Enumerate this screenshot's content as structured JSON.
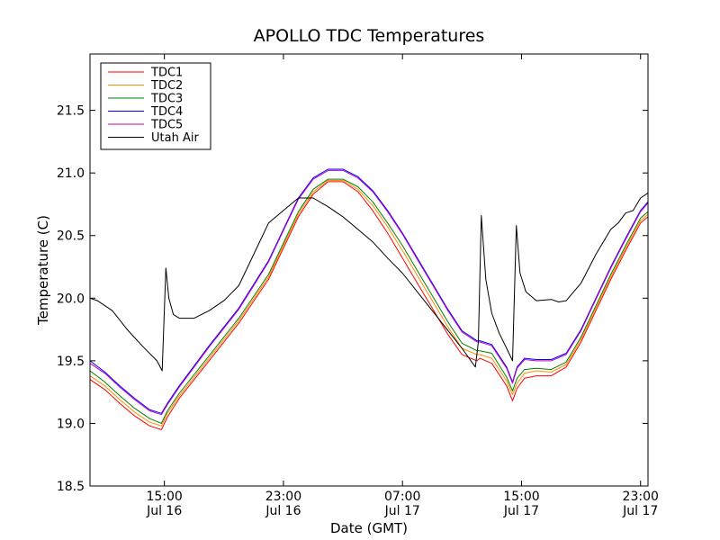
{
  "chart_data": {
    "type": "line",
    "title": "APOLLO TDC Temperatures",
    "xlabel": "Date (GMT)",
    "ylabel": "Temperature (C)",
    "x_unit": "hours since Jul 16 00:00 GMT",
    "xlim": [
      10.0,
      47.5
    ],
    "ylim": [
      18.5,
      21.95
    ],
    "grid": false,
    "legend_position": "top-left",
    "x_ticks": [
      {
        "value": 15,
        "line1": "15:00",
        "line2": "Jul 16"
      },
      {
        "value": 23,
        "line1": "23:00",
        "line2": "Jul 16"
      },
      {
        "value": 31,
        "line1": "07:00",
        "line2": "Jul 17"
      },
      {
        "value": 39,
        "line1": "15:00",
        "line2": "Jul 17"
      },
      {
        "value": 47,
        "line1": "23:00",
        "line2": "Jul 17"
      }
    ],
    "y_ticks": [
      {
        "value": 18.5,
        "label": "18.5"
      },
      {
        "value": 19.0,
        "label": "19.0"
      },
      {
        "value": 19.5,
        "label": "19.5"
      },
      {
        "value": 20.0,
        "label": "20.0"
      },
      {
        "value": 20.5,
        "label": "20.5"
      },
      {
        "value": 21.0,
        "label": "21.0"
      },
      {
        "value": 21.5,
        "label": "21.5"
      }
    ],
    "series": [
      {
        "name": "TDC1",
        "color": "#ff0000",
        "x": [
          10,
          11,
          12,
          13,
          14,
          14.8,
          15.2,
          16,
          18,
          20,
          22,
          23,
          24,
          25,
          26,
          27,
          28,
          29,
          30,
          31,
          32,
          33,
          34,
          35,
          36,
          36.2,
          37,
          38,
          38.4,
          38.7,
          39.2,
          40,
          41,
          42,
          43,
          44,
          45,
          46,
          47,
          47.5
        ],
        "y": [
          19.35,
          19.27,
          19.16,
          19.06,
          18.98,
          18.95,
          19.05,
          19.2,
          19.5,
          19.8,
          20.15,
          20.4,
          20.65,
          20.83,
          20.93,
          20.93,
          20.85,
          20.7,
          20.52,
          20.32,
          20.12,
          19.92,
          19.72,
          19.55,
          19.5,
          19.52,
          19.48,
          19.3,
          19.18,
          19.28,
          19.36,
          19.38,
          19.38,
          19.45,
          19.65,
          19.9,
          20.15,
          20.38,
          20.6,
          20.65
        ]
      },
      {
        "name": "TDC2",
        "color": "#ff8c00",
        "x": [
          10,
          11,
          12,
          13,
          14,
          14.8,
          15.2,
          16,
          18,
          20,
          22,
          23,
          24,
          25,
          26,
          27,
          28,
          29,
          30,
          31,
          32,
          33,
          34,
          35,
          36,
          36.2,
          37,
          38,
          38.4,
          38.7,
          39.2,
          40,
          41,
          42,
          43,
          44,
          45,
          46,
          47,
          47.5
        ],
        "y": [
          19.38,
          19.3,
          19.19,
          19.09,
          19.01,
          18.98,
          19.08,
          19.22,
          19.52,
          19.82,
          20.17,
          20.42,
          20.67,
          20.85,
          20.94,
          20.94,
          20.87,
          20.74,
          20.57,
          20.38,
          20.18,
          19.98,
          19.78,
          19.6,
          19.55,
          19.55,
          19.52,
          19.34,
          19.23,
          19.32,
          19.4,
          19.42,
          19.41,
          19.47,
          19.67,
          19.92,
          20.17,
          20.4,
          20.62,
          20.67
        ]
      },
      {
        "name": "TDC3",
        "color": "#008000",
        "x": [
          10,
          11,
          12,
          13,
          14,
          14.8,
          15.2,
          16,
          18,
          20,
          22,
          23,
          24,
          25,
          26,
          27,
          28,
          29,
          30,
          31,
          32,
          33,
          34,
          35,
          36,
          36.2,
          37,
          38,
          38.4,
          38.7,
          39.2,
          40,
          41,
          42,
          43,
          44,
          45,
          46,
          47,
          47.5
        ],
        "y": [
          19.42,
          19.33,
          19.22,
          19.12,
          19.04,
          19.0,
          19.1,
          19.24,
          19.54,
          19.84,
          20.19,
          20.44,
          20.69,
          20.87,
          20.95,
          20.95,
          20.89,
          20.77,
          20.6,
          20.42,
          20.22,
          20.02,
          19.82,
          19.64,
          19.58,
          19.58,
          19.56,
          19.37,
          19.26,
          19.36,
          19.43,
          19.44,
          19.43,
          19.49,
          19.69,
          19.94,
          20.19,
          20.42,
          20.64,
          20.69
        ]
      },
      {
        "name": "TDC4",
        "color": "#0000ff",
        "x": [
          10,
          11,
          12,
          13,
          14,
          14.8,
          15.2,
          16,
          18,
          20,
          22,
          23,
          24,
          25,
          26,
          27,
          28,
          29,
          30,
          31,
          32,
          33,
          34,
          35,
          36,
          36.2,
          37,
          38,
          38.4,
          38.7,
          39.2,
          40,
          41,
          42,
          43,
          44,
          45,
          46,
          47,
          47.5
        ],
        "y": [
          19.5,
          19.41,
          19.3,
          19.2,
          19.11,
          19.08,
          19.16,
          19.3,
          19.62,
          19.92,
          20.3,
          20.55,
          20.8,
          20.96,
          21.03,
          21.03,
          20.97,
          20.86,
          20.7,
          20.52,
          20.32,
          20.12,
          19.92,
          19.74,
          19.66,
          19.66,
          19.63,
          19.45,
          19.33,
          19.45,
          19.52,
          19.51,
          19.51,
          19.56,
          19.75,
          20.0,
          20.25,
          20.48,
          20.7,
          20.77
        ]
      },
      {
        "name": "TDC5",
        "color": "#bf00bf",
        "x": [
          10,
          11,
          12,
          13,
          14,
          14.8,
          15.2,
          16,
          18,
          20,
          22,
          23,
          24,
          25,
          26,
          27,
          28,
          29,
          30,
          31,
          32,
          33,
          34,
          35,
          36,
          36.2,
          37,
          38,
          38.4,
          38.7,
          39.2,
          40,
          41,
          42,
          43,
          44,
          45,
          46,
          47,
          47.5
        ],
        "y": [
          19.48,
          19.4,
          19.29,
          19.19,
          19.1,
          19.07,
          19.15,
          19.29,
          19.61,
          19.91,
          20.29,
          20.54,
          20.79,
          20.95,
          21.02,
          21.02,
          20.96,
          20.85,
          20.69,
          20.51,
          20.31,
          20.11,
          19.91,
          19.73,
          19.65,
          19.65,
          19.62,
          19.44,
          19.32,
          19.44,
          19.51,
          19.5,
          19.5,
          19.55,
          19.74,
          19.99,
          20.24,
          20.47,
          20.69,
          20.76
        ]
      },
      {
        "name": "Utah Air",
        "color": "#000000",
        "x": [
          10,
          10.5,
          11.5,
          12.5,
          13.5,
          14.5,
          14.85,
          15.1,
          15.3,
          15.6,
          16,
          17,
          18,
          19,
          20,
          21,
          22,
          23,
          24,
          25,
          26,
          27,
          28,
          29,
          30,
          31,
          32,
          33,
          34,
          35,
          35.9,
          36.1,
          36.3,
          36.6,
          37.0,
          37.5,
          38.0,
          38.4,
          38.65,
          38.9,
          39.3,
          40,
          41,
          41.5,
          42,
          43,
          44,
          44.5,
          45,
          45.5,
          46,
          46.5,
          47,
          47.5
        ],
        "y": [
          20.0,
          19.98,
          19.9,
          19.75,
          19.62,
          19.5,
          19.42,
          20.24,
          20.0,
          19.87,
          19.84,
          19.84,
          19.9,
          19.98,
          20.1,
          20.35,
          20.6,
          20.7,
          20.8,
          20.8,
          20.73,
          20.65,
          20.55,
          20.45,
          20.32,
          20.2,
          20.05,
          19.9,
          19.75,
          19.6,
          19.45,
          19.65,
          20.66,
          20.15,
          19.88,
          19.72,
          19.6,
          19.5,
          20.58,
          20.2,
          20.05,
          19.98,
          19.99,
          19.97,
          19.98,
          20.12,
          20.35,
          20.45,
          20.55,
          20.6,
          20.68,
          20.7,
          20.8,
          20.84
        ]
      }
    ]
  }
}
